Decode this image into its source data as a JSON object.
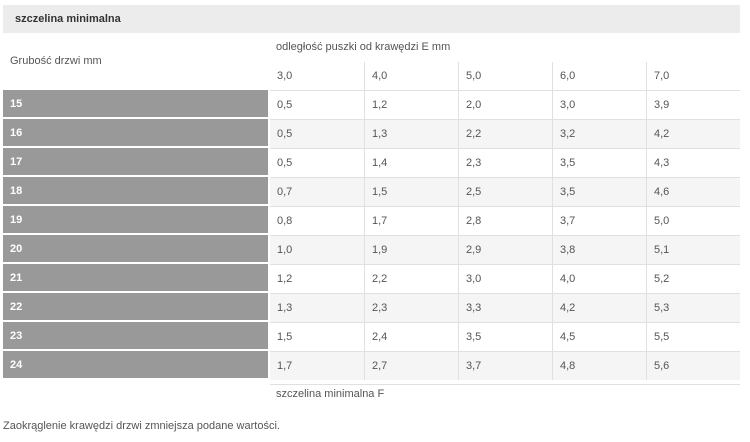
{
  "table": {
    "title": "szczelina minimalna",
    "row_header": "Grubość drzwi mm",
    "column_group_header": "odległość puszki od krawędzi E mm",
    "columns": [
      "3,0",
      "4,0",
      "5,0",
      "6,0",
      "7,0"
    ],
    "rows": [
      {
        "label": "15",
        "cells": [
          "0,5",
          "1,2",
          "2,0",
          "3,0",
          "3,9"
        ]
      },
      {
        "label": "16",
        "cells": [
          "0,5",
          "1,3",
          "2,2",
          "3,2",
          "4,2"
        ]
      },
      {
        "label": "17",
        "cells": [
          "0,5",
          "1,4",
          "2,3",
          "3,5",
          "4,3"
        ]
      },
      {
        "label": "18",
        "cells": [
          "0,7",
          "1,5",
          "2,5",
          "3,5",
          "4,6"
        ]
      },
      {
        "label": "19",
        "cells": [
          "0,8",
          "1,7",
          "2,8",
          "3,7",
          "5,0"
        ]
      },
      {
        "label": "20",
        "cells": [
          "1,0",
          "1,9",
          "2,9",
          "3,8",
          "5,1"
        ]
      },
      {
        "label": "21",
        "cells": [
          "1,2",
          "2,2",
          "3,0",
          "4,0",
          "5,2"
        ]
      },
      {
        "label": "22",
        "cells": [
          "1,3",
          "2,3",
          "3,3",
          "4,2",
          "5,3"
        ]
      },
      {
        "label": "23",
        "cells": [
          "1,5",
          "2,4",
          "3,5",
          "4,5",
          "5,5"
        ]
      },
      {
        "label": "24",
        "cells": [
          "1,7",
          "2,7",
          "3,7",
          "4,8",
          "5,6"
        ]
      }
    ],
    "footer": "szczelina minimalna F"
  },
  "note": "Zaokrąglenie krawędzi drzwi zmniejsza podane wartości."
}
